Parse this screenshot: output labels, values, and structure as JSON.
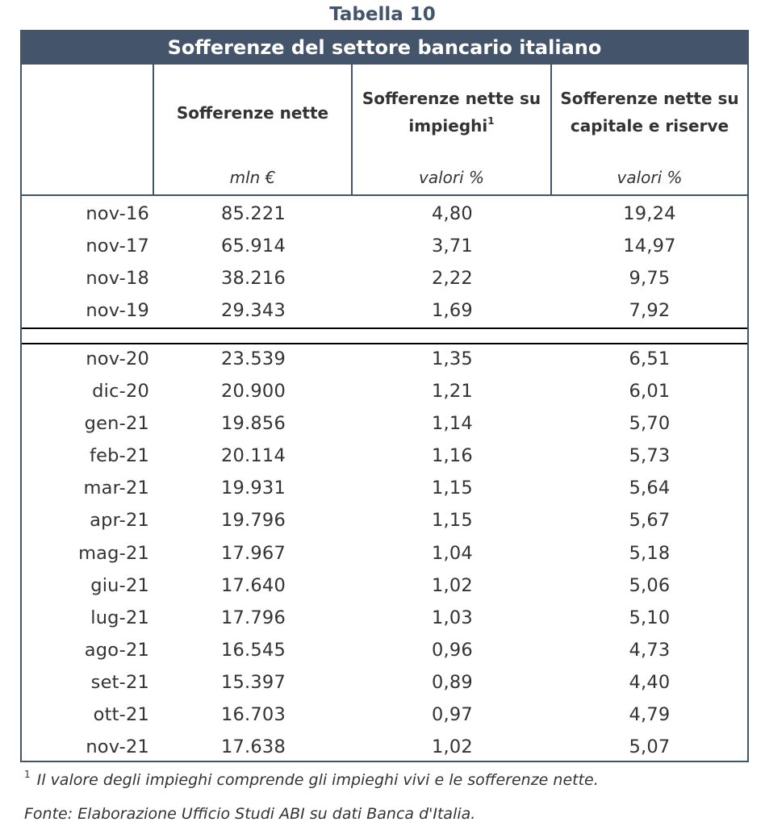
{
  "caption": "Tabella 10",
  "title": "Sofferenze del settore bancario italiano",
  "columns": [
    {
      "label": "",
      "unit": ""
    },
    {
      "label": "Sofferenze nette",
      "unit": "mln €"
    },
    {
      "label_line1": "Sofferenze nette su",
      "label_line2": "impieghi",
      "label_sup": "1",
      "unit": "valori %"
    },
    {
      "label_line1": "Sofferenze nette su",
      "label_line2": "capitale e riserve",
      "unit": "valori %"
    }
  ],
  "rows_annual": [
    {
      "label": "nov-16",
      "v1": "85.221",
      "v2": "4,80",
      "v3": "19,24"
    },
    {
      "label": "nov-17",
      "v1": "65.914",
      "v2": "3,71",
      "v3": "14,97"
    },
    {
      "label": "nov-18",
      "v1": "38.216",
      "v2": "2,22",
      "v3": "9,75"
    },
    {
      "label": "nov-19",
      "v1": "29.343",
      "v2": "1,69",
      "v3": "7,92"
    }
  ],
  "rows_monthly": [
    {
      "label": "nov-20",
      "v1": "23.539",
      "v2": "1,35",
      "v3": "6,51"
    },
    {
      "label": "dic-20",
      "v1": "20.900",
      "v2": "1,21",
      "v3": "6,01"
    },
    {
      "label": "gen-21",
      "v1": "19.856",
      "v2": "1,14",
      "v3": "5,70"
    },
    {
      "label": "feb-21",
      "v1": "20.114",
      "v2": "1,16",
      "v3": "5,73"
    },
    {
      "label": "mar-21",
      "v1": "19.931",
      "v2": "1,15",
      "v3": "5,64"
    },
    {
      "label": "apr-21",
      "v1": "19.796",
      "v2": "1,15",
      "v3": "5,67"
    },
    {
      "label": "mag-21",
      "v1": "17.967",
      "v2": "1,04",
      "v3": "5,18"
    },
    {
      "label": "giu-21",
      "v1": "17.640",
      "v2": "1,02",
      "v3": "5,06"
    },
    {
      "label": "lug-21",
      "v1": "17.796",
      "v2": "1,03",
      "v3": "5,10"
    },
    {
      "label": "ago-21",
      "v1": "16.545",
      "v2": "0,96",
      "v3": "4,73"
    },
    {
      "label": "set-21",
      "v1": "15.397",
      "v2": "0,89",
      "v3": "4,40"
    },
    {
      "label": "ott-21",
      "v1": "16.703",
      "v2": "0,97",
      "v3": "4,79"
    },
    {
      "label": "nov-21",
      "v1": "17.638",
      "v2": "1,02",
      "v3": "5,07"
    }
  ],
  "footnote": {
    "marker": "1",
    "text": "Il valore degli impieghi comprende gli impieghi vivi e le sofferenze nette."
  },
  "source": "Fonte: Elaborazione Ufficio Studi ABI su dati Banca d'Italia.",
  "colors": {
    "accent": "#44546a",
    "text": "#333333",
    "separator": "#000000"
  }
}
